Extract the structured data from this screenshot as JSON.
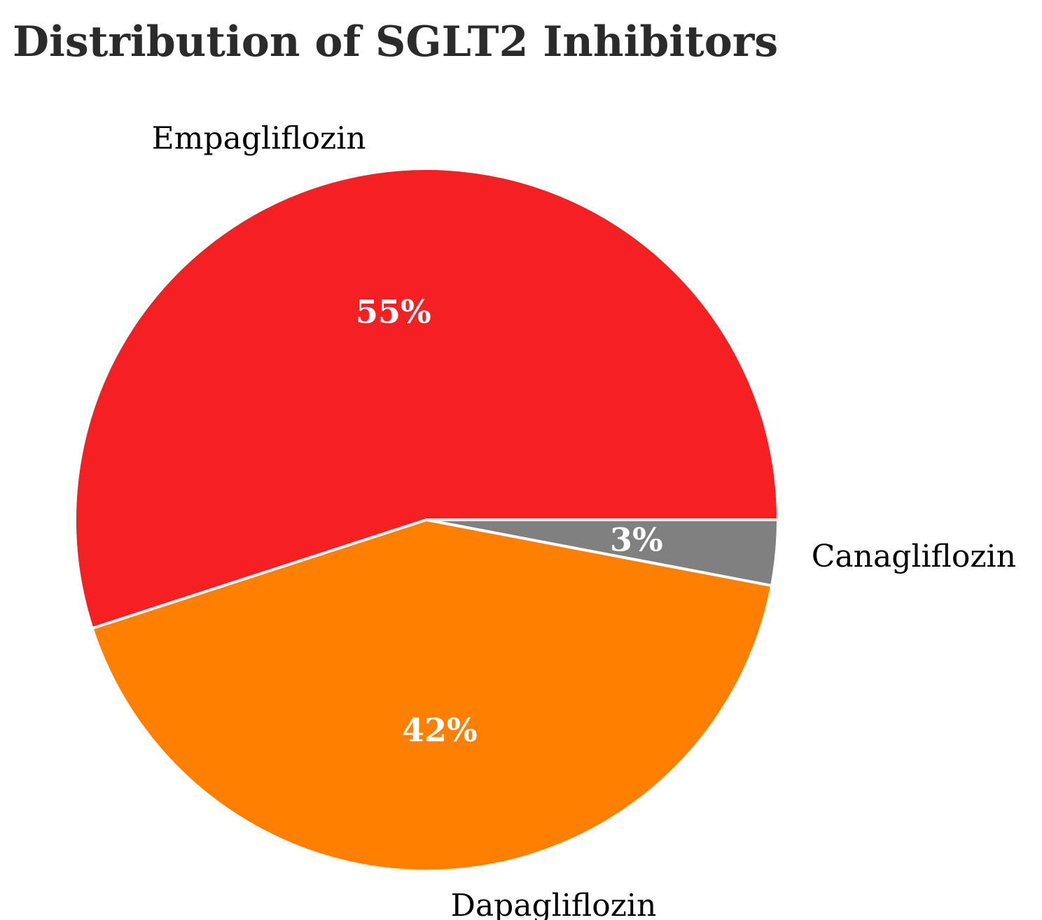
{
  "chart_data": {
    "type": "pie",
    "title": "Distribution of SGLT2 Inhibitors",
    "slices": [
      {
        "label": "Empagliflozin",
        "value": 55,
        "pct_label": "55%",
        "color": "#f52022"
      },
      {
        "label": "Dapagliflozin",
        "value": 42,
        "pct_label": "42%",
        "color": "#ff7f00"
      },
      {
        "label": "Canagliflozin",
        "value": 3,
        "pct_label": "3%",
        "color": "#808080"
      }
    ],
    "wedge_edge_color": "#ffffff"
  }
}
